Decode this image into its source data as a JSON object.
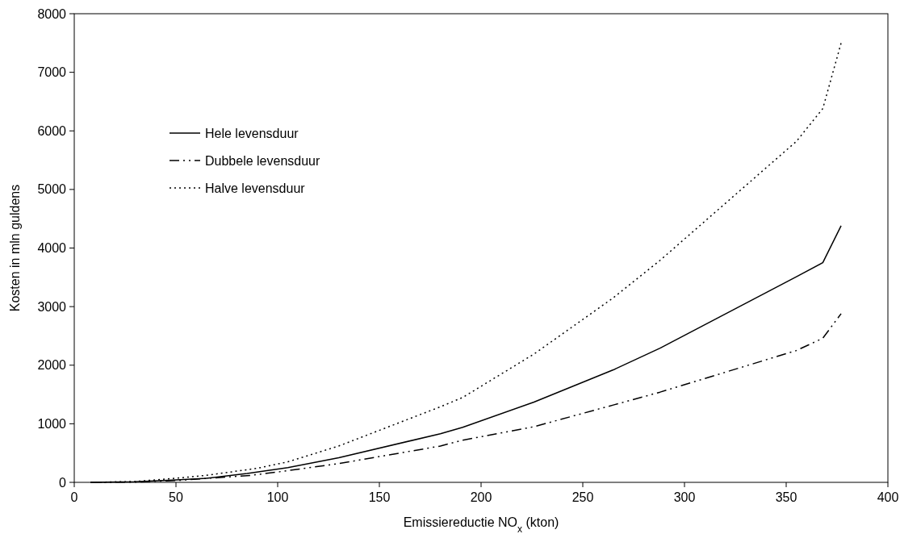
{
  "chart_data": {
    "type": "line",
    "xlabel": "Emissiereductie NO$_{x}$ (kton)",
    "ylabel": "Kosten in mln guldens",
    "xlim": [
      0,
      400
    ],
    "xticks": [
      0,
      50,
      100,
      150,
      200,
      250,
      300,
      350,
      400
    ],
    "ylim": [
      0,
      8000
    ],
    "yticks": [
      0,
      1000,
      2000,
      3000,
      4000,
      5000,
      6000,
      7000,
      8000
    ],
    "grid": false,
    "legend": "top left",
    "marker": "none",
    "series": [
      {
        "name": "Hele levensduur",
        "color": "#000000",
        "line_style": "solid",
        "x": [
          8,
          30,
          50,
          65,
          85,
          105,
          130,
          180,
          191,
          226,
          265,
          288,
          355,
          368,
          377
        ],
        "values": [
          0,
          10,
          40,
          70,
          150,
          250,
          420,
          830,
          940,
          1370,
          1920,
          2290,
          3510,
          3750,
          4380
        ]
      },
      {
        "name": "Dubbele levensduur",
        "color": "#000000",
        "line_style": "dashed",
        "x": [
          8,
          30,
          50,
          87,
          105,
          130,
          180,
          191,
          226,
          265,
          288,
          355,
          368,
          377
        ],
        "values": [
          0,
          5,
          30,
          120,
          200,
          320,
          620,
          720,
          950,
          1320,
          1540,
          2250,
          2460,
          2880
        ]
      },
      {
        "name": "Halve levensduur",
        "color": "#000000",
        "line_style": "dotted",
        "x": [
          8,
          30,
          50,
          65,
          90,
          105,
          130,
          180,
          191,
          226,
          265,
          288,
          355,
          368,
          377
        ],
        "values": [
          0,
          15,
          70,
          120,
          240,
          350,
          620,
          1290,
          1450,
          2190,
          3150,
          3790,
          5820,
          6380,
          7500
        ]
      }
    ]
  }
}
